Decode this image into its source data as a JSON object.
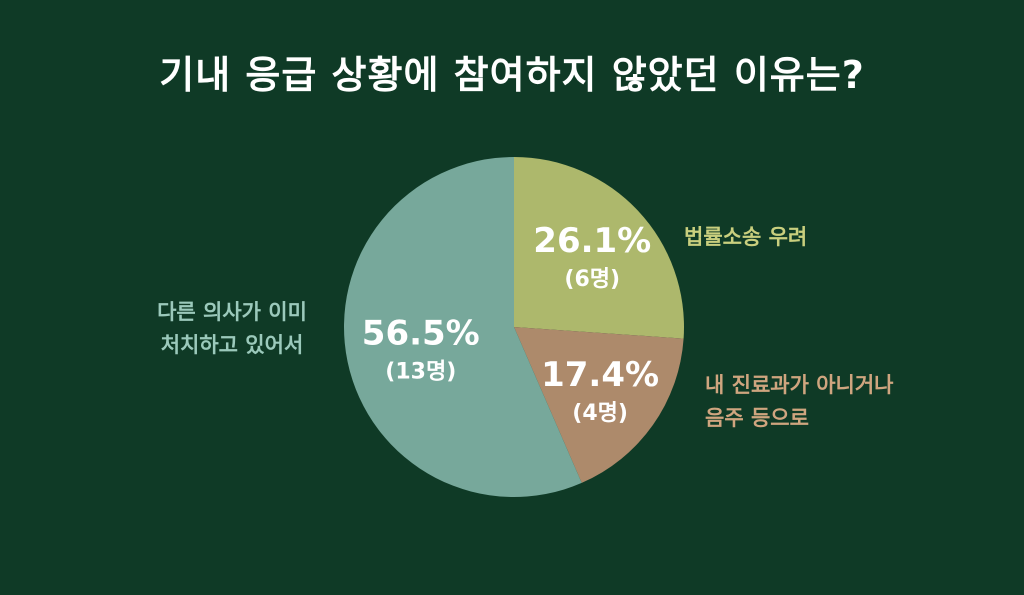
{
  "title": "기내 응급 상황에 참여하지 않았던 이유는?",
  "colors": {
    "background": "#0f3a26",
    "slice_teal": "#77a89b",
    "slice_olive": "#adb86c",
    "slice_tan": "#ad8a6b",
    "text_white": "#ffffff",
    "legend_teal": "#9bc9bb",
    "legend_olive": "#c9cf7e",
    "legend_tan": "#cfa57f"
  },
  "chart_data": {
    "type": "pie",
    "start": "top, clockwise",
    "slices": [
      {
        "label_lines": [
          "법률소송 우려"
        ],
        "percent_label": "26.1%",
        "count_label": "(6명)",
        "value": 6,
        "percent": 26.1,
        "color": "#adb86c",
        "legend_color": "#c9cf7e"
      },
      {
        "label_lines": [
          "내 진료과가 아니거나",
          "음주 등으로"
        ],
        "percent_label": "17.4%",
        "count_label": "(4명)",
        "value": 4,
        "percent": 17.4,
        "color": "#ad8a6b",
        "legend_color": "#cfa57f"
      },
      {
        "label_lines": [
          "다른 의사가 이미",
          "처치하고 있어서"
        ],
        "percent_label": "56.5%",
        "count_label": "(13명)",
        "value": 13,
        "percent": 56.5,
        "color": "#77a89b",
        "legend_color": "#9bc9bb"
      }
    ]
  }
}
